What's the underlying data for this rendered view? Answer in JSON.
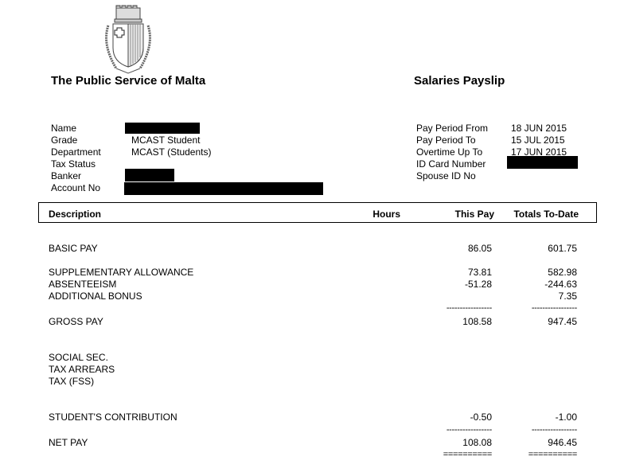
{
  "header": {
    "org_title": "The Public Service of Malta",
    "doc_title": "Salaries Payslip",
    "crest": "Coat of Arms of Malta"
  },
  "employee": {
    "labels": [
      "Name",
      "Grade",
      "Department",
      "Tax Status",
      "Banker",
      "Account No"
    ],
    "grade": "MCAST Student",
    "department": "MCAST (Students)"
  },
  "period": {
    "labels": [
      "Pay Period From",
      "Pay Period To",
      "Overtime Up To",
      "ID Card Number",
      "Spouse ID No"
    ],
    "from": "18 JUN 2015",
    "to": "15 JUL 2015",
    "overtime_up_to": "17 JUN 2015"
  },
  "columns": {
    "description": "Description",
    "hours": "Hours",
    "this_pay": "This Pay",
    "totals": "Totals To-Date"
  },
  "rows": [
    {
      "desc": "BASIC PAY",
      "this_pay": "86.05",
      "totals": "601.75"
    },
    {
      "desc": "SUPPLEMENTARY ALLOWANCE",
      "this_pay": "73.81",
      "totals": "582.98"
    },
    {
      "desc": "ABSENTEEISM",
      "this_pay": "-51.28",
      "totals": "-244.63"
    },
    {
      "desc": "ADDITIONAL BONUS",
      "this_pay": "",
      "totals": "7.35"
    },
    {
      "desc": "GROSS PAY",
      "this_pay": "108.58",
      "totals": "947.45"
    },
    {
      "desc": "SOCIAL SEC.",
      "this_pay": "",
      "totals": ""
    },
    {
      "desc": "TAX ARREARS",
      "this_pay": "",
      "totals": ""
    },
    {
      "desc": "TAX (FSS)",
      "this_pay": "",
      "totals": ""
    },
    {
      "desc": "STUDENT'S CONTRIBUTION",
      "this_pay": "-0.50",
      "totals": "-1.00"
    },
    {
      "desc": "NET PAY",
      "this_pay": "108.08",
      "totals": "946.45"
    }
  ],
  "rules": {
    "single": "-----------------",
    "double": "=========="
  }
}
